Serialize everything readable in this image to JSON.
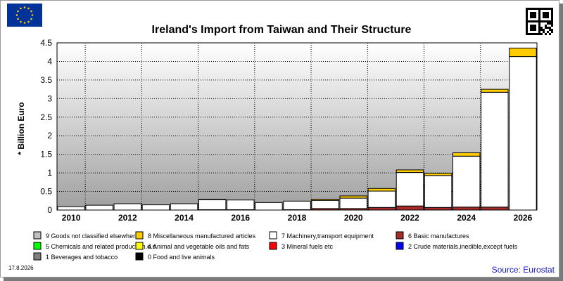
{
  "header": {
    "title": "Ireland's Import from Taiwan and Their Structure",
    "flag_icon": "eu-flag-icon",
    "qr_icon": "qr-code-icon"
  },
  "footer": {
    "date": "17.8.2026",
    "source": "Source: Eurostat"
  },
  "colors": {
    "gradient_top": "#ffffff",
    "gradient_bottom": "#a0a0a0",
    "sitc0": "#000000",
    "sitc1": "#808080",
    "sitc2": "#0000ff",
    "sitc3": "#ff0000",
    "sitc4": "#ffff00",
    "sitc5": "#00ff00",
    "sitc6": "#a52a2a",
    "sitc7": "#ffffff",
    "sitc8": "#ffcc00",
    "sitc9": "#c0c0c0",
    "source": "#1a1acc"
  },
  "legend": [
    {
      "label": "9 Goods not classified elsewhere",
      "color": "#c0c0c0"
    },
    {
      "label": "8 Miscellaneous manufactured articles",
      "color": "#ffcc00"
    },
    {
      "label": "7 Machinery,transport equipment",
      "color": "#ffffff"
    },
    {
      "label": "6 Basic manufactures",
      "color": "#a52a2a"
    },
    {
      "label": "5 Chemicals and related products,n.e.s.",
      "color": "#00ff00"
    },
    {
      "label": "4 Animal and vegetable oils and fats",
      "color": "#ffff00"
    },
    {
      "label": "3 Mineral fuels etc",
      "color": "#ff0000"
    },
    {
      "label": "2 Crude materials,inedible,except fuels",
      "color": "#0000ff"
    },
    {
      "label": "1 Beverages and tobacco",
      "color": "#808080"
    },
    {
      "label": "0 Food and live animals",
      "color": "#000000"
    }
  ],
  "chart_data": {
    "type": "bar",
    "stacked": true,
    "title": "Ireland's Import from Taiwan and Their Structure",
    "ylabel": "* Billion Euro",
    "xlabel": "",
    "ylim": [
      0,
      4.5
    ],
    "yticks": [
      "0",
      "0.5",
      "1",
      "1.5",
      "2",
      "2.5",
      "3",
      "3.5",
      "4",
      "4.5"
    ],
    "grid": true,
    "categories": [
      "2010",
      "2011",
      "2012",
      "2013",
      "2014",
      "2015",
      "2016",
      "2017",
      "2018",
      "2019",
      "2020",
      "2021",
      "2022",
      "2023",
      "2024",
      "2025",
      "2026"
    ],
    "x_tick_labels": [
      "2010",
      "2012",
      "2014",
      "2016",
      "2018",
      "2020",
      "2022",
      "2024",
      "2026"
    ],
    "series": [
      {
        "name": "6 Basic manufactures",
        "color": "#a52a2a",
        "values": [
          0.0,
          0.0,
          0.0,
          0.0,
          0.0,
          0.01,
          0.01,
          0.0,
          0.01,
          0.04,
          0.04,
          0.07,
          0.11,
          0.07,
          0.08,
          0.08,
          0.0
        ]
      },
      {
        "name": "7 Machinery,transport equipment",
        "color": "#ffffff",
        "values": [
          0.09,
          0.13,
          0.17,
          0.14,
          0.17,
          0.27,
          0.26,
          0.2,
          0.23,
          0.22,
          0.28,
          0.44,
          0.9,
          0.86,
          1.37,
          3.09,
          4.13
        ]
      },
      {
        "name": "8 Miscellaneous manufactured articles",
        "color": "#ffcc00",
        "values": [
          0.0,
          0.0,
          0.0,
          0.0,
          0.0,
          0.01,
          0.0,
          0.0,
          0.0,
          0.03,
          0.06,
          0.07,
          0.07,
          0.06,
          0.09,
          0.08,
          0.23
        ]
      }
    ]
  }
}
